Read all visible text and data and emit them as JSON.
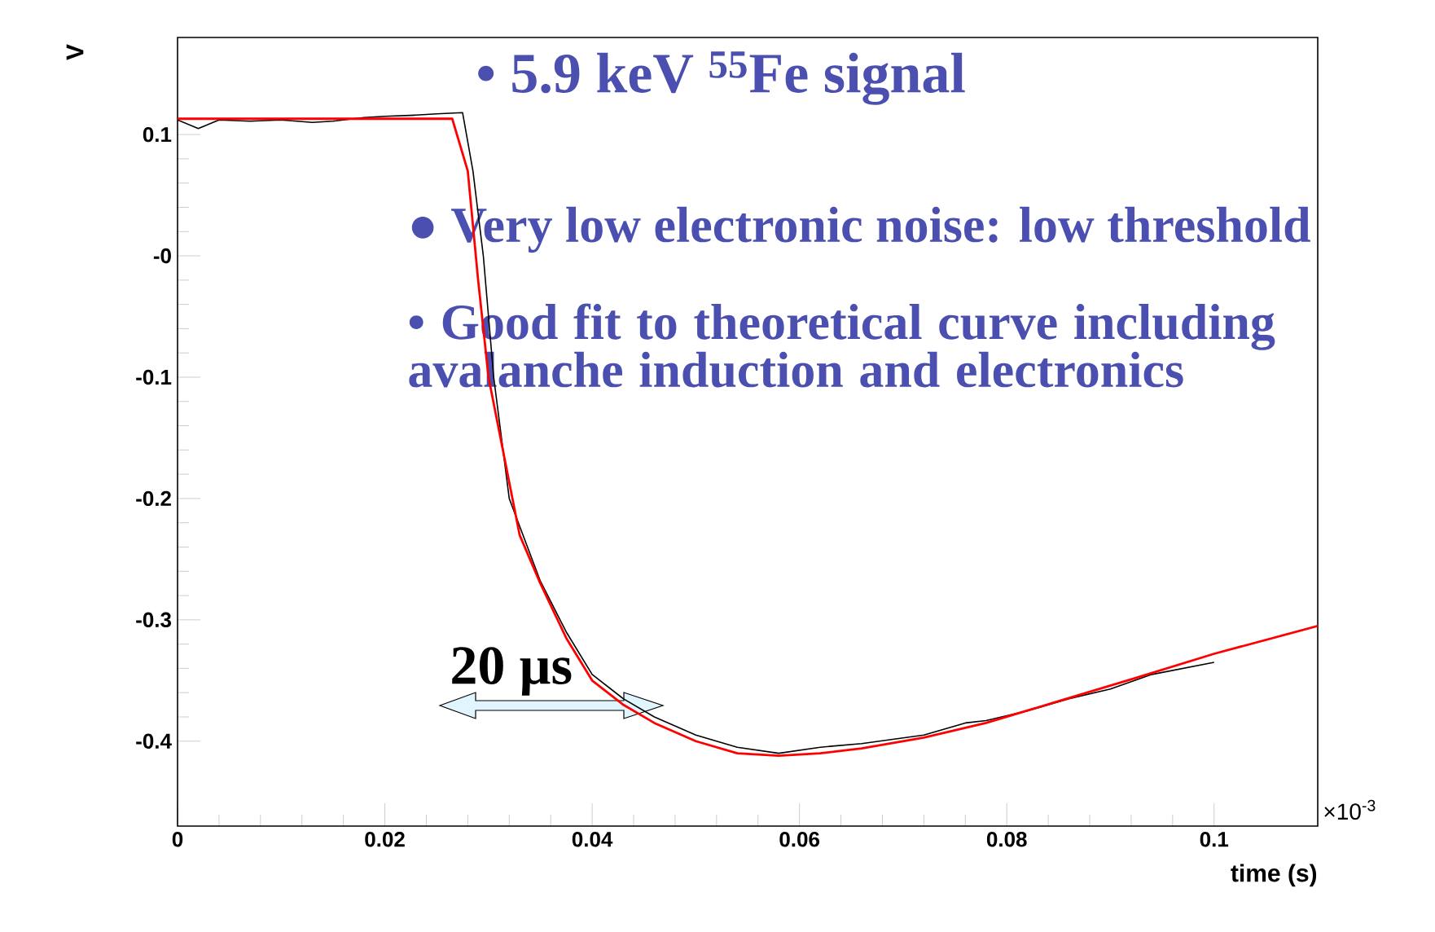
{
  "chart_data": {
    "type": "line",
    "xlabel": "time (s)",
    "ylabel": "V",
    "annotations": [
      "• 5.9 keV $^{55}$Fe signal",
      "● Very low electronic noise: low threshold",
      "• Good fit to theoretical curve including avalanche induction and electronics",
      "20 µs",
      "×10$^{-3}$"
    ],
    "xlim": [
      0,
      0.11
    ],
    "ylim": [
      -0.47,
      0.18
    ],
    "xticks": [
      0,
      0.02,
      0.04,
      0.06,
      0.08,
      0.1
    ],
    "yticks": [
      -0.4,
      -0.3,
      -0.2,
      -0.1,
      {
        "value": 0,
        "label": "-0"
      },
      0.1
    ],
    "series": [
      {
        "color": "#000000",
        "x": [
          0,
          0.002,
          0.004,
          0.007,
          0.01,
          0.013,
          0.015,
          0.018,
          0.02,
          0.023,
          0.025,
          0.0275,
          0.0285,
          0.0295,
          0.0305,
          0.032,
          0.035,
          0.0375,
          0.04,
          0.043,
          0.046,
          0.05,
          0.054,
          0.058,
          0.062,
          0.066,
          0.072,
          0.076,
          0.078,
          0.082,
          0.086,
          0.09,
          0.094,
          0.1
        ],
        "values": [
          0.112,
          0.105,
          0.112,
          0.111,
          0.112,
          0.11,
          0.111,
          0.114,
          0.115,
          0.116,
          0.117,
          0.118,
          0.07,
          0.0,
          -0.1,
          -0.2,
          -0.268,
          -0.31,
          -0.345,
          -0.365,
          -0.38,
          -0.395,
          -0.405,
          -0.41,
          -0.405,
          -0.402,
          -0.395,
          -0.385,
          -0.383,
          -0.375,
          -0.365,
          -0.357,
          -0.345,
          -0.335
        ]
      },
      {
        "color": "#ff0000",
        "x": [
          0,
          0.0265,
          0.028,
          0.029,
          0.03,
          0.0315,
          0.033,
          0.035,
          0.0375,
          0.04,
          0.043,
          0.046,
          0.05,
          0.054,
          0.058,
          0.062,
          0.066,
          0.072,
          0.078,
          0.085,
          0.092,
          0.1,
          0.11
        ],
        "values": [
          0.113,
          0.113,
          0.07,
          -0.02,
          -0.1,
          -0.165,
          -0.23,
          -0.27,
          -0.315,
          -0.35,
          -0.37,
          -0.385,
          -0.4,
          -0.41,
          -0.412,
          -0.41,
          -0.406,
          -0.397,
          -0.385,
          -0.367,
          -0.349,
          -0.328,
          -0.305
        ]
      }
    ]
  }
}
